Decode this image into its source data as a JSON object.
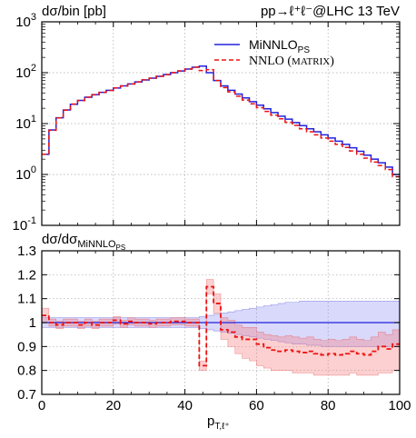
{
  "chart_data": [
    {
      "type": "line",
      "panel": "main",
      "title": "pp→ℓ⁺ℓ⁻@LHC 13 TeV",
      "ylabel": "dσ/bin [pb]",
      "xlabel": "",
      "xlim": [
        0,
        100
      ],
      "ylim": [
        0.1,
        1000
      ],
      "yscale": "log",
      "grid": true,
      "legend_position": "top-right",
      "x_ticks": [
        "0",
        "20",
        "40",
        "60",
        "80",
        "100"
      ],
      "y_ticks": [
        "10-1",
        "100",
        "101",
        "102",
        "103"
      ],
      "bin_edges": [
        0,
        2,
        4,
        6,
        8,
        10,
        12,
        14,
        16,
        18,
        20,
        22,
        24,
        26,
        28,
        30,
        32,
        34,
        36,
        38,
        40,
        42,
        44,
        46,
        48,
        50,
        52,
        54,
        56,
        58,
        60,
        62,
        64,
        66,
        68,
        70,
        72,
        74,
        76,
        78,
        80,
        82,
        84,
        86,
        88,
        90,
        92,
        94,
        96,
        98,
        100
      ],
      "series": [
        {
          "name": "MiNNLOPS",
          "legend_main": "MiNNLO",
          "legend_sub": "PS",
          "color": "#2222dd",
          "style": "solid",
          "values": [
            2.5,
            7.5,
            13,
            18.5,
            24,
            28.5,
            33,
            37,
            41,
            45,
            50,
            55,
            60,
            66,
            72,
            78,
            85,
            92,
            100,
            108,
            118,
            128,
            135,
            100,
            70,
            55,
            45,
            38,
            32,
            27,
            23,
            19.5,
            16.5,
            14,
            12.2,
            10.5,
            9.1,
            7.9,
            6.9,
            6.0,
            5.2,
            4.5,
            3.9,
            3.35,
            2.85,
            2.4,
            2.0,
            1.7,
            1.4,
            1.0
          ]
        },
        {
          "name": "NNLO (MATRIX)",
          "legend_main": "NNLO (",
          "legend_caps": "MATRIX",
          "legend_end": ")",
          "color": "#ee1111",
          "style": "dashed",
          "values": [
            2.5,
            7.4,
            12.9,
            18.3,
            24.2,
            28.4,
            33.1,
            36.8,
            41.2,
            44.8,
            50.3,
            54.7,
            60.2,
            65.8,
            72.4,
            77.6,
            85.2,
            91.8,
            100.4,
            108.5,
            118.2,
            128.5,
            110,
            115,
            70,
            51,
            42,
            34.5,
            29,
            24.5,
            20.5,
            17.3,
            14.6,
            12.4,
            10.6,
            9.2,
            7.9,
            6.9,
            6.0,
            5.2,
            4.5,
            3.9,
            3.4,
            2.9,
            2.5,
            2.1,
            1.75,
            1.5,
            1.25,
            0.9
          ]
        }
      ]
    },
    {
      "type": "line",
      "panel": "ratio",
      "ylabel_main": "dσ/dσ",
      "ylabel_sub": "MiNNLO",
      "ylabel_subsub": "PS",
      "xlabel_main": "p",
      "xlabel_sub": "T,ℓ⁺",
      "xlim": [
        0,
        100
      ],
      "ylim": [
        0.7,
        1.3
      ],
      "grid": true,
      "x_ticks": [
        "0",
        "20",
        "40",
        "60",
        "80",
        "100"
      ],
      "y_ticks": [
        "0.7",
        "0.8",
        "0.9",
        "1",
        "1.1",
        "1.2",
        "1.3"
      ],
      "bin_edges": [
        0,
        2,
        4,
        6,
        8,
        10,
        12,
        14,
        16,
        18,
        20,
        22,
        24,
        26,
        28,
        30,
        32,
        34,
        36,
        38,
        40,
        42,
        44,
        46,
        48,
        50,
        52,
        54,
        56,
        58,
        60,
        62,
        64,
        66,
        68,
        70,
        72,
        74,
        76,
        78,
        80,
        82,
        84,
        86,
        88,
        90,
        92,
        94,
        96,
        98,
        100
      ],
      "series": [
        {
          "name": "MiNNLOPS",
          "color": "#2222dd",
          "values": [
            1,
            1,
            1,
            1,
            1,
            1,
            1,
            1,
            1,
            1,
            1,
            1,
            1,
            1,
            1,
            1,
            1,
            1,
            1,
            1,
            1,
            1,
            1,
            1,
            1,
            1,
            1,
            1,
            1,
            1,
            1,
            1,
            1,
            1,
            1,
            1,
            1,
            1,
            1,
            1,
            1,
            1,
            1,
            1,
            1,
            1,
            1,
            1,
            1,
            1
          ],
          "band_low": [
            0.98,
            0.98,
            0.98,
            0.98,
            0.98,
            0.98,
            0.98,
            0.98,
            0.98,
            0.98,
            0.98,
            0.98,
            0.98,
            0.98,
            0.98,
            0.98,
            0.98,
            0.98,
            0.98,
            0.98,
            0.98,
            0.98,
            0.975,
            0.97,
            0.965,
            0.96,
            0.955,
            0.95,
            0.945,
            0.94,
            0.935,
            0.93,
            0.925,
            0.92,
            0.915,
            0.91,
            0.91,
            0.905,
            0.905,
            0.9,
            0.9,
            0.9,
            0.9,
            0.9,
            0.9,
            0.9,
            0.9,
            0.9,
            0.9,
            0.9
          ],
          "band_high": [
            1.02,
            1.02,
            1.02,
            1.02,
            1.02,
            1.02,
            1.02,
            1.02,
            1.02,
            1.02,
            1.02,
            1.02,
            1.02,
            1.02,
            1.02,
            1.02,
            1.02,
            1.02,
            1.02,
            1.02,
            1.02,
            1.02,
            1.025,
            1.03,
            1.035,
            1.04,
            1.045,
            1.05,
            1.055,
            1.06,
            1.065,
            1.07,
            1.075,
            1.08,
            1.085,
            1.085,
            1.09,
            1.09,
            1.09,
            1.09,
            1.09,
            1.09,
            1.09,
            1.09,
            1.09,
            1.09,
            1.09,
            1.09,
            1.09,
            1.09
          ]
        },
        {
          "name": "NNLO (MATRIX)",
          "color": "#ee1111",
          "values": [
            1.03,
            1.0,
            0.99,
            1.0,
            1.0,
            0.99,
            1.0,
            0.99,
            1.0,
            1.0,
            1.01,
            0.995,
            1.005,
            1.0,
            1.0,
            0.995,
            1.0,
            1.0,
            1.005,
            1.005,
            1.0,
            1.0,
            0.82,
            1.15,
            1.08,
            0.97,
            0.96,
            0.94,
            0.93,
            0.93,
            0.91,
            0.895,
            0.885,
            0.88,
            0.885,
            0.88,
            0.875,
            0.88,
            0.87,
            0.865,
            0.87,
            0.865,
            0.87,
            0.88,
            0.87,
            0.865,
            0.88,
            0.9,
            0.89,
            0.91
          ],
          "band_low": [
            1.0,
            0.985,
            0.975,
            0.985,
            0.985,
            0.975,
            0.985,
            0.975,
            0.985,
            0.985,
            0.995,
            0.98,
            0.99,
            0.985,
            0.985,
            0.98,
            0.985,
            0.985,
            0.99,
            0.99,
            0.985,
            0.985,
            0.8,
            1.12,
            1.04,
            0.93,
            0.9,
            0.87,
            0.85,
            0.84,
            0.82,
            0.81,
            0.8,
            0.8,
            0.8,
            0.79,
            0.79,
            0.79,
            0.78,
            0.78,
            0.78,
            0.78,
            0.78,
            0.79,
            0.78,
            0.78,
            0.78,
            0.79,
            0.79,
            0.8
          ],
          "band_high": [
            1.06,
            1.015,
            1.005,
            1.015,
            1.015,
            1.005,
            1.015,
            1.005,
            1.015,
            1.015,
            1.025,
            1.01,
            1.02,
            1.015,
            1.015,
            1.01,
            1.015,
            1.015,
            1.02,
            1.02,
            1.015,
            1.015,
            0.84,
            1.18,
            1.12,
            1.02,
            1.01,
            0.99,
            0.98,
            0.98,
            0.96,
            0.95,
            0.945,
            0.94,
            0.945,
            0.94,
            0.935,
            0.94,
            0.93,
            0.925,
            0.93,
            0.925,
            0.93,
            0.94,
            0.93,
            0.925,
            0.94,
            0.96,
            0.95,
            0.97
          ]
        }
      ]
    }
  ]
}
